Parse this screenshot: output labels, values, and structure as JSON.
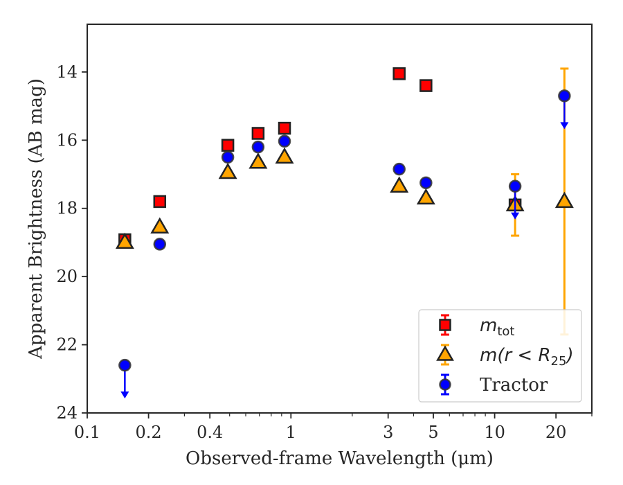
{
  "chart_data": {
    "type": "scatter",
    "title": "",
    "xlabel": "Observed-frame Wavelength (μm)",
    "ylabel": "Apparent Brightness (AB mag)",
    "xscale": "log",
    "xlim": [
      0.1,
      30
    ],
    "ylim": [
      24,
      12.6
    ],
    "y_inverted": true,
    "xticks": [
      0.1,
      0.2,
      0.4,
      1,
      3,
      5,
      10,
      20
    ],
    "xtick_labels": [
      "0.1",
      "0.2",
      "0.4",
      "1",
      "3",
      "5",
      "10",
      "20"
    ],
    "yticks": [
      14,
      16,
      18,
      20,
      22,
      24
    ],
    "ytick_labels": [
      "14",
      "16",
      "18",
      "20",
      "22",
      "24"
    ],
    "grid": false,
    "legend_position": "lower-right",
    "series": [
      {
        "name": "m_tot",
        "legend_label": "m",
        "legend_subscript": "tot",
        "marker": "square",
        "face_color": "#ff0000",
        "edge_color": "#222222",
        "err_color": "#ff0000",
        "points": [
          {
            "x": 0.153,
            "y": 18.92,
            "err": 0.08
          },
          {
            "x": 0.227,
            "y": 17.8,
            "err": 0.05
          },
          {
            "x": 0.49,
            "y": 16.15,
            "err": 0.04
          },
          {
            "x": 0.69,
            "y": 15.8,
            "err": 0.04
          },
          {
            "x": 0.93,
            "y": 15.65,
            "err": 0.04
          },
          {
            "x": 3.4,
            "y": 14.05,
            "err": 0.04
          },
          {
            "x": 4.6,
            "y": 14.4,
            "err": 0.04
          },
          {
            "x": 12.6,
            "y": 17.9,
            "err": 0.1
          }
        ]
      },
      {
        "name": "m(r < R25)",
        "legend_label": "m(r < R",
        "legend_subscript": "25",
        "legend_suffix": ")",
        "marker": "triangle",
        "face_color": "#ffa500",
        "edge_color": "#222222",
        "err_color": "#ffa500",
        "points": [
          {
            "x": 0.153,
            "y": 19.0,
            "err": 0.08
          },
          {
            "x": 0.227,
            "y": 18.55,
            "err": 0.05
          },
          {
            "x": 0.49,
            "y": 16.95,
            "err": 0.04
          },
          {
            "x": 0.69,
            "y": 16.65,
            "err": 0.04
          },
          {
            "x": 0.93,
            "y": 16.5,
            "err": 0.04
          },
          {
            "x": 3.4,
            "y": 17.35,
            "err": 0.04
          },
          {
            "x": 4.6,
            "y": 17.7,
            "err": 0.05
          },
          {
            "x": 12.6,
            "y": 17.9,
            "err": 0.9
          },
          {
            "x": 22.0,
            "y": 17.8,
            "err_low": 3.9,
            "err_high": 3.9
          }
        ]
      },
      {
        "name": "Tractor",
        "legend_label": "Tractor",
        "marker": "circle",
        "face_color": "#0000ff",
        "edge_color": "#333333",
        "err_color": "#0000ff",
        "points": [
          {
            "x": 0.153,
            "y": 22.6,
            "upper_limit": true
          },
          {
            "x": 0.227,
            "y": 19.05,
            "err": 0.05
          },
          {
            "x": 0.49,
            "y": 16.5,
            "err": 0.04
          },
          {
            "x": 0.69,
            "y": 16.2,
            "err": 0.04
          },
          {
            "x": 0.93,
            "y": 16.03,
            "err": 0.04
          },
          {
            "x": 3.4,
            "y": 16.85,
            "err": 0.04
          },
          {
            "x": 4.6,
            "y": 17.25,
            "err": 0.05
          },
          {
            "x": 12.6,
            "y": 17.35,
            "upper_limit": true
          },
          {
            "x": 22.0,
            "y": 14.7,
            "upper_limit": true
          }
        ]
      }
    ]
  }
}
